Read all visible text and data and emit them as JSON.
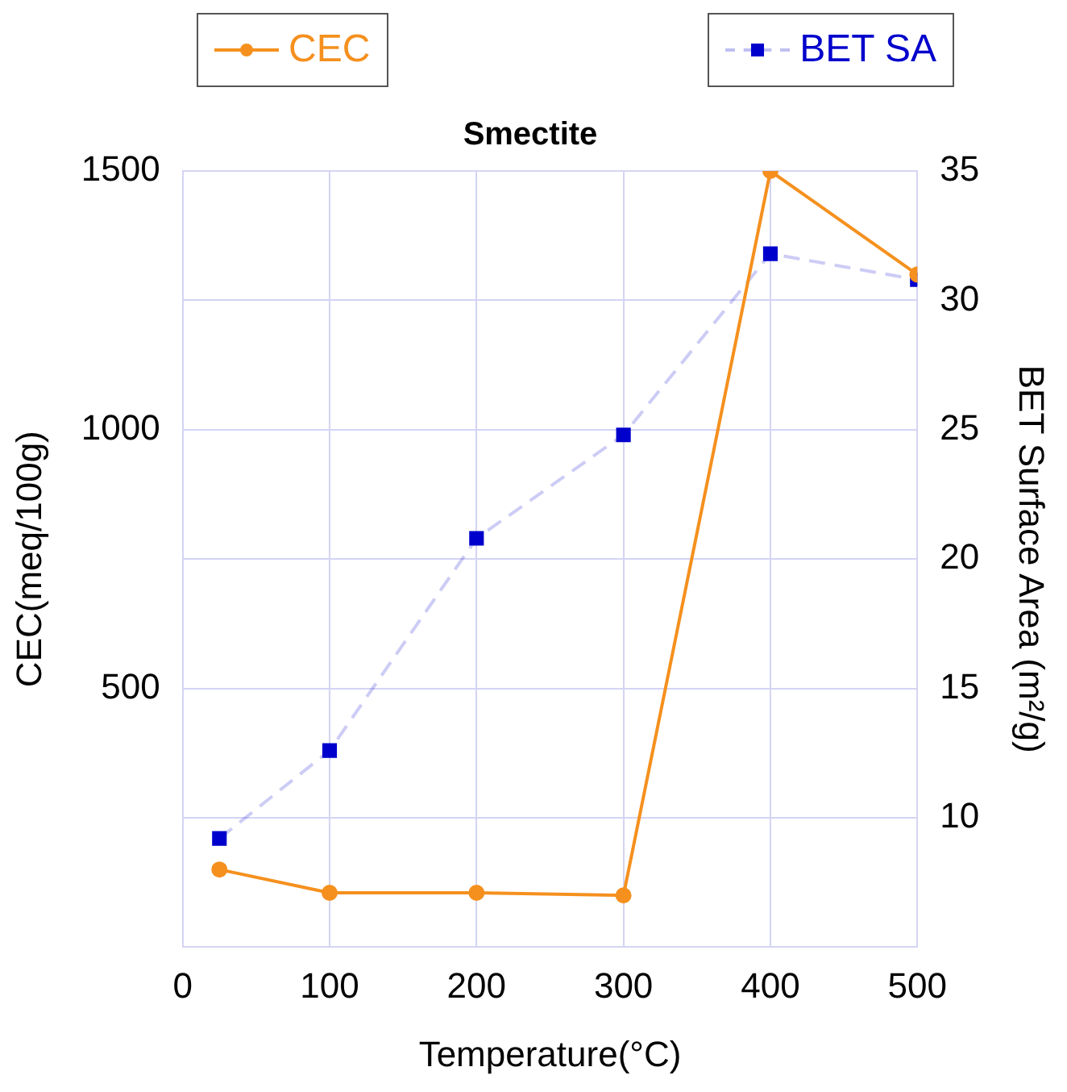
{
  "chart_data": {
    "type": "line",
    "title": "Smectite",
    "xlabel": "Temperature(°C)",
    "ylabel": "CEC(meq/100g)",
    "y2label": "BET Surface Area (m²/g)",
    "x": [
      25,
      100,
      200,
      300,
      400,
      500
    ],
    "series": [
      {
        "name": "CEC",
        "color": "#f5901e",
        "values": [
          150,
          105,
          105,
          100,
          1500,
          1300
        ],
        "marker": "circle",
        "line_style": "solid"
      },
      {
        "name": "BET SA",
        "color": "#0000cc",
        "values": [
          9.2,
          12.6,
          20.8,
          24.8,
          31.8,
          30.8
        ],
        "axis": "y2",
        "marker": "square",
        "line_style": "dashed"
      }
    ],
    "xlim": [
      0,
      500
    ],
    "xticks": [
      0,
      100,
      200,
      300,
      400,
      500
    ],
    "ylim": [
      0,
      1500
    ],
    "yticks": [
      500,
      1000,
      1500
    ],
    "y2lim": [
      5,
      35
    ],
    "y2ticks": [
      10,
      15,
      20,
      25,
      30,
      35
    ],
    "grid": true,
    "legend": "top"
  }
}
